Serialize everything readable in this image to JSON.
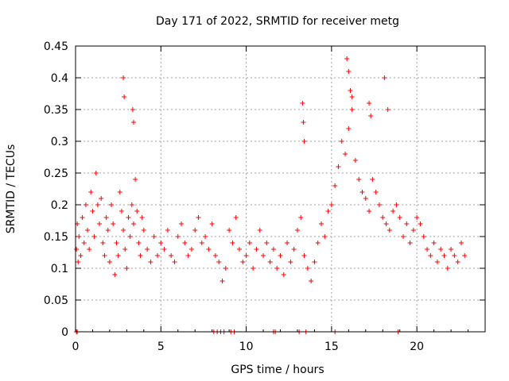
{
  "chart_data": {
    "type": "scatter",
    "title": "Day 171 of 2022, SRMTID for receiver metg",
    "xlabel": "GPS time / hours",
    "ylabel": "SRMTID / TECUs",
    "xlim": [
      0,
      24
    ],
    "ylim": [
      0,
      0.45
    ],
    "grid": true,
    "x_ticks": [
      0,
      5,
      10,
      15,
      20
    ],
    "x_tick_labels": [
      "0",
      "5",
      "10",
      "15",
      "20"
    ],
    "y_ticks": [
      0,
      0.05,
      0.1,
      0.15,
      0.2,
      0.25,
      0.3,
      0.35,
      0.4,
      0.45
    ],
    "y_tick_labels": [
      "0",
      "0.05",
      "0.1",
      "0.15",
      "0.2",
      "0.25",
      "0.3",
      "0.35",
      "0.4",
      "0.45"
    ],
    "marker": "+",
    "color": "#ff0000",
    "series": [
      {
        "name": "SRMTID",
        "x": [
          0.05,
          0.1,
          0.15,
          0.2,
          0.3,
          0.4,
          0.5,
          0.6,
          0.7,
          0.8,
          0.9,
          1.0,
          1.1,
          1.2,
          1.3,
          1.4,
          1.5,
          1.6,
          1.7,
          1.8,
          1.9,
          2.0,
          2.1,
          2.2,
          2.3,
          2.4,
          2.5,
          2.6,
          2.7,
          2.8,
          2.9,
          3.0,
          3.1,
          3.2,
          3.3,
          3.4,
          3.5,
          3.6,
          3.7,
          3.8,
          3.9,
          4.0,
          4.2,
          4.4,
          4.6,
          4.8,
          5.0,
          5.2,
          5.4,
          5.6,
          5.8,
          6.0,
          6.2,
          6.4,
          6.6,
          6.8,
          7.0,
          7.2,
          7.4,
          7.6,
          7.8,
          8.0,
          8.2,
          8.4,
          8.6,
          8.8,
          9.0,
          9.2,
          9.4,
          9.6,
          9.8,
          10.0,
          10.2,
          10.4,
          10.6,
          10.8,
          11.0,
          11.2,
          11.4,
          11.6,
          11.8,
          12.0,
          12.2,
          12.4,
          12.6,
          12.8,
          13.0,
          13.2,
          13.4,
          13.6,
          13.8,
          14.0,
          14.2,
          14.4,
          14.6,
          14.8,
          15.0,
          15.2,
          15.4,
          15.6,
          15.8,
          16.0,
          16.2,
          16.4,
          16.6,
          16.8,
          17.0,
          17.2,
          17.4,
          17.6,
          17.8,
          18.0,
          18.2,
          18.4,
          18.6,
          18.8,
          19.0,
          19.2,
          19.4,
          19.6,
          19.8,
          20.0,
          20.2,
          20.4,
          20.6,
          20.8,
          21.0,
          21.2,
          21.4,
          21.6,
          21.8,
          22.0,
          22.2,
          22.4,
          22.6,
          22.8,
          2.8,
          2.85,
          3.35,
          3.4,
          13.3,
          13.35,
          13.4,
          15.9,
          16.0,
          16.1,
          16.2,
          17.2,
          17.3,
          18.1,
          18.3,
          8.1,
          8.3,
          8.5,
          8.7,
          9.1,
          9.3,
          11.6,
          11.7,
          13.1,
          13.5,
          15.2,
          18.9,
          0.05,
          0.1
        ],
        "y": [
          0.13,
          0.17,
          0.11,
          0.15,
          0.12,
          0.18,
          0.14,
          0.2,
          0.16,
          0.13,
          0.22,
          0.19,
          0.15,
          0.25,
          0.2,
          0.17,
          0.21,
          0.14,
          0.12,
          0.18,
          0.16,
          0.11,
          0.2,
          0.17,
          0.09,
          0.14,
          0.12,
          0.22,
          0.19,
          0.16,
          0.13,
          0.1,
          0.18,
          0.15,
          0.2,
          0.17,
          0.24,
          0.19,
          0.14,
          0.12,
          0.18,
          0.16,
          0.13,
          0.11,
          0.15,
          0.12,
          0.14,
          0.13,
          0.16,
          0.12,
          0.11,
          0.15,
          0.17,
          0.14,
          0.12,
          0.13,
          0.16,
          0.18,
          0.14,
          0.15,
          0.13,
          0.17,
          0.12,
          0.11,
          0.08,
          0.1,
          0.16,
          0.14,
          0.18,
          0.13,
          0.11,
          0.12,
          0.14,
          0.1,
          0.13,
          0.16,
          0.12,
          0.14,
          0.11,
          0.13,
          0.1,
          0.12,
          0.09,
          0.14,
          0.11,
          0.13,
          0.16,
          0.18,
          0.12,
          0.1,
          0.08,
          0.11,
          0.14,
          0.17,
          0.15,
          0.19,
          0.2,
          0.23,
          0.26,
          0.3,
          0.28,
          0.32,
          0.35,
          0.27,
          0.24,
          0.22,
          0.21,
          0.19,
          0.24,
          0.22,
          0.2,
          0.18,
          0.17,
          0.16,
          0.19,
          0.2,
          0.18,
          0.15,
          0.17,
          0.14,
          0.16,
          0.18,
          0.17,
          0.15,
          0.13,
          0.12,
          0.14,
          0.11,
          0.13,
          0.12,
          0.1,
          0.13,
          0.12,
          0.11,
          0.14,
          0.12,
          0.4,
          0.37,
          0.35,
          0.33,
          0.36,
          0.33,
          0.3,
          0.43,
          0.41,
          0.38,
          0.37,
          0.36,
          0.34,
          0.4,
          0.35,
          0,
          0,
          0,
          0,
          0,
          0,
          0,
          0,
          0,
          0,
          0,
          0,
          0,
          0
        ]
      }
    ]
  }
}
